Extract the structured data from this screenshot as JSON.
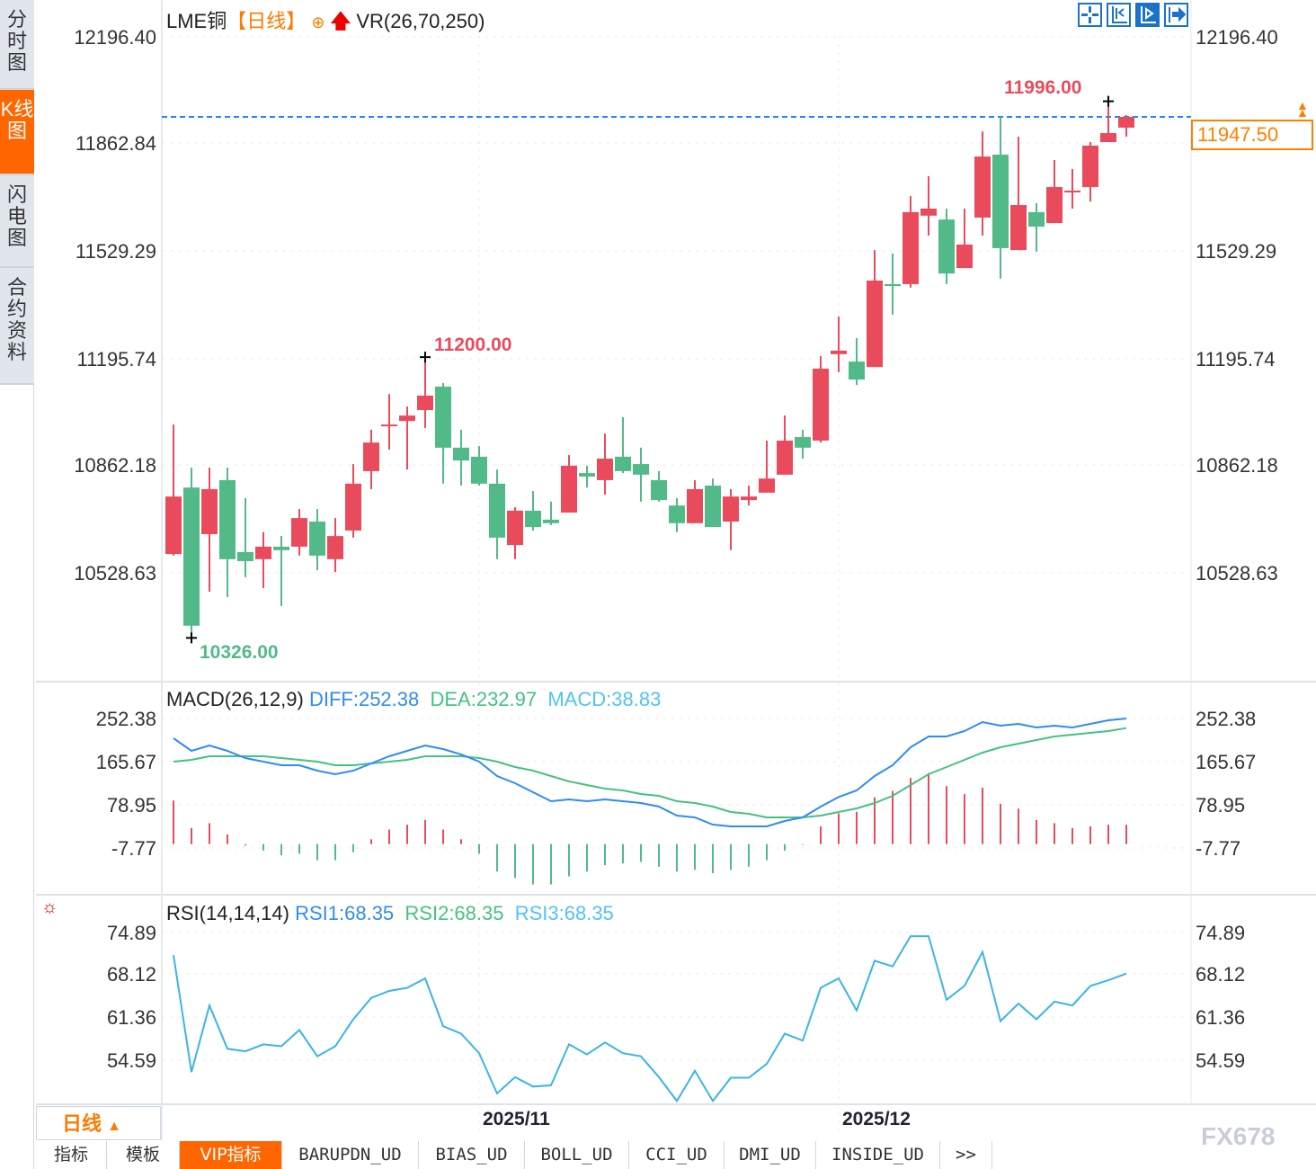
{
  "sidebar": {
    "tabs": [
      {
        "label": "分时图"
      },
      {
        "label": "K线图"
      },
      {
        "label": "闪电图"
      },
      {
        "label": "合约资料"
      }
    ]
  },
  "main": {
    "symbol": "LME铜",
    "period": "【日线】",
    "indicator": "VR(26,70,250)",
    "last_price": "11947.50",
    "high_label": "11996.00",
    "low_label": "10326.00",
    "mid_high_label": "11200.00",
    "axis_labels": [
      "12196.40",
      "11862.84",
      "11529.29",
      "11195.74",
      "10862.18",
      "10528.63"
    ]
  },
  "macd": {
    "title": "MACD(26,12,9)",
    "diff_label": "DIFF:252.38",
    "dea_label": "DEA:232.97",
    "macd_label": "MACD:38.83",
    "axis_labels": [
      "252.38",
      "165.67",
      "78.95",
      "-7.77"
    ]
  },
  "rsi": {
    "title": "RSI(14,14,14)",
    "rsi1_label": "RSI1:68.35",
    "rsi2_label": "RSI2:68.35",
    "rsi3_label": "RSI3:68.35",
    "axis_labels": [
      "74.89",
      "68.12",
      "61.36",
      "54.59"
    ]
  },
  "xaxis": {
    "labels": [
      "2025/11",
      "2025/12"
    ]
  },
  "period_selector": {
    "label": "日线",
    "arrow": "▲"
  },
  "bottom_tabs": [
    "指标",
    "模板",
    "VIP指标",
    "BARUPDN_UD",
    "BIAS_UD",
    "BOLL_UD",
    "CCI_UD",
    "DMI_UD",
    "INSIDE_UD",
    ">>"
  ],
  "watermark": "FX678",
  "colors": {
    "up": "#ea4b5c",
    "down": "#52ba88",
    "diff": "#2f8cf5",
    "dea": "#45c280",
    "rsi": "#3cb4e6",
    "accent": "#ff6600",
    "last_line": "#1a8cff"
  },
  "chart_data": {
    "type": "candlestick",
    "title": "LME铜 日线",
    "xlabel": "",
    "ylabel": "",
    "ylim": [
      10250,
      12196.4
    ],
    "x_tick_labels": [
      "2025/11",
      "2025/12"
    ],
    "x_tick_index": [
      17,
      37
    ],
    "ohlc": [
      [
        10587,
        10990,
        10582,
        10766
      ],
      [
        10794,
        10856,
        10326,
        10364
      ],
      [
        10649,
        10856,
        10470,
        10789
      ],
      [
        10817,
        10856,
        10453,
        10571
      ],
      [
        10593,
        10761,
        10515,
        10565
      ],
      [
        10571,
        10655,
        10481,
        10610
      ],
      [
        10610,
        10643,
        10425,
        10599
      ],
      [
        10610,
        10727,
        10582,
        10699
      ],
      [
        10688,
        10727,
        10537,
        10582
      ],
      [
        10571,
        10699,
        10531,
        10643
      ],
      [
        10660,
        10867,
        10638,
        10806
      ],
      [
        10845,
        10974,
        10789,
        10934
      ],
      [
        10987,
        11085,
        10912,
        10990
      ],
      [
        11001,
        11046,
        10850,
        11018
      ],
      [
        11035,
        11200,
        10979,
        11080
      ],
      [
        11108,
        11119,
        10806,
        10918
      ],
      [
        10918,
        10974,
        10800,
        10878
      ],
      [
        10890,
        10923,
        10800,
        10806
      ],
      [
        10806,
        10850,
        10571,
        10638
      ],
      [
        10615,
        10733,
        10571,
        10722
      ],
      [
        10722,
        10783,
        10660,
        10671
      ],
      [
        10694,
        10750,
        10677,
        10683
      ],
      [
        10716,
        10895,
        10716,
        10862
      ],
      [
        10839,
        10862,
        10794,
        10828
      ],
      [
        10817,
        10962,
        10772,
        10884
      ],
      [
        10890,
        11013,
        10839,
        10845
      ],
      [
        10867,
        10918,
        10750,
        10834
      ],
      [
        10817,
        10845,
        10750,
        10755
      ],
      [
        10738,
        10761,
        10655,
        10683
      ],
      [
        10683,
        10817,
        10683,
        10789
      ],
      [
        10800,
        10822,
        10671,
        10671
      ],
      [
        10688,
        10789,
        10599,
        10766
      ],
      [
        10755,
        10800,
        10738,
        10766
      ],
      [
        10778,
        10940,
        10778,
        10822
      ],
      [
        10834,
        11018,
        10834,
        10940
      ],
      [
        10951,
        10974,
        10884,
        10918
      ],
      [
        10940,
        11203,
        10934,
        11164
      ],
      [
        11209,
        11326,
        11153,
        11220
      ],
      [
        11186,
        11259,
        11113,
        11130
      ],
      [
        11169,
        11533,
        11169,
        11438
      ],
      [
        11427,
        11522,
        11332,
        11421
      ],
      [
        11427,
        11701,
        11416,
        11651
      ],
      [
        11640,
        11763,
        11578,
        11662
      ],
      [
        11628,
        11662,
        11427,
        11460
      ],
      [
        11477,
        11662,
        11477,
        11550
      ],
      [
        11634,
        11902,
        11578,
        11824
      ],
      [
        11830,
        11947,
        11444,
        11539
      ],
      [
        11533,
        11886,
        11533,
        11673
      ],
      [
        11651,
        11679,
        11528,
        11606
      ],
      [
        11617,
        11813,
        11617,
        11729
      ],
      [
        11715,
        11785,
        11662,
        11718
      ],
      [
        11729,
        11869,
        11684,
        11858
      ],
      [
        11869,
        11996,
        11869,
        11897
      ],
      [
        11914,
        11953,
        11886,
        11947.5
      ]
    ],
    "macd": {
      "ylim": [
        -7.77,
        252.38
      ],
      "diff": [
        212.6,
        187.4,
        198.2,
        187.4,
        172.9,
        165.7,
        158.5,
        158.5,
        147.6,
        140.4,
        147.6,
        162.1,
        176.5,
        187.4,
        198.2,
        191.0,
        180.1,
        165.7,
        136.8,
        122.3,
        104.3,
        86.2,
        89.8,
        86.2,
        89.8,
        86.2,
        82.6,
        75.4,
        57.3,
        53.7,
        39.2,
        35.6,
        35.6,
        35.6,
        46.4,
        53.7,
        75.4,
        94.7,
        107.9,
        136.8,
        158.5,
        194.6,
        216.3,
        216.3,
        227.1,
        245.2,
        237.9,
        241.5,
        234.3,
        237.9,
        234.3,
        241.5,
        248.8,
        252.38
      ],
      "dea": [
        165.7,
        169.3,
        176.5,
        176.5,
        176.5,
        176.5,
        172.9,
        169.3,
        165.7,
        158.5,
        158.5,
        162.1,
        165.7,
        169.3,
        176.5,
        176.5,
        176.5,
        172.9,
        165.7,
        154.8,
        147.6,
        136.8,
        125.9,
        118.7,
        111.5,
        107.9,
        100.6,
        97.0,
        86.2,
        82.6,
        75.4,
        64.5,
        60.9,
        53.7,
        53.7,
        53.7,
        57.3,
        64.5,
        71.7,
        82.6,
        97.0,
        118.7,
        140.4,
        154.8,
        169.3,
        183.7,
        194.6,
        201.8,
        209.0,
        216.3,
        219.9,
        223.5,
        227.1,
        232.97
      ],
      "hist": [
        87.5,
        32.4,
        42.1,
        19.4,
        -3.2,
        -13,
        -22.7,
        -19.4,
        -32.4,
        -32.4,
        -16.2,
        9.7,
        29.2,
        38.9,
        48.6,
        29.2,
        9.7,
        -19.4,
        -55.1,
        -68,
        -81,
        -81,
        -64.8,
        -55.1,
        -42.1,
        -38.9,
        -35.6,
        -45.4,
        -55.1,
        -51.8,
        -58.3,
        -51.8,
        -45.4,
        -32.4,
        -13,
        -1.6,
        35.6,
        61.6,
        64.8,
        94,
        106.9,
        132.8,
        142.6,
        116.6,
        100.4,
        113.4,
        81,
        71.3,
        48.6,
        42.1,
        32.4,
        35.6,
        38.9,
        38.83
      ]
    },
    "rsi": {
      "ylim": [
        50,
        74.89
      ],
      "values": [
        71.3,
        52.7,
        63.3,
        56.4,
        56.0,
        57.1,
        56.8,
        59.4,
        55.2,
        56.8,
        61.1,
        64.5,
        65.6,
        66.1,
        67.6,
        60.0,
        58.8,
        55.7,
        49.3,
        51.9,
        50.4,
        50.6,
        57.1,
        55.5,
        57.4,
        55.7,
        55.2,
        51.9,
        48.1,
        52.9,
        48.1,
        51.8,
        51.8,
        54.0,
        58.8,
        57.7,
        66.1,
        67.6,
        62.5,
        70.4,
        69.5,
        74.3,
        74.3,
        64.2,
        66.4,
        71.8,
        60.8,
        63.6,
        61.1,
        63.9,
        63.3,
        66.4,
        67.3,
        68.35
      ]
    }
  }
}
